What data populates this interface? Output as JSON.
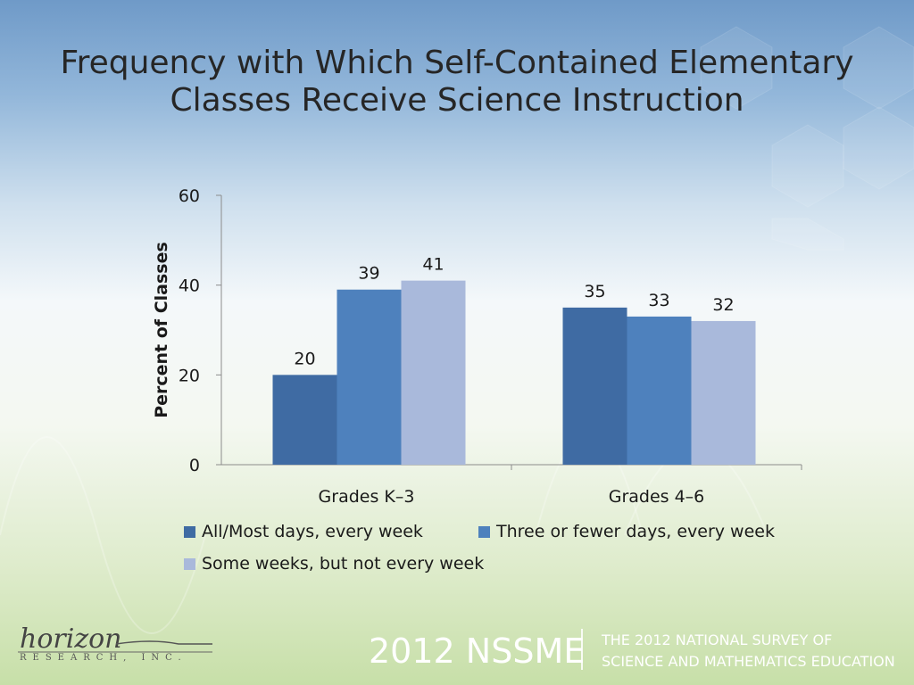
{
  "title_line1": "Frequency with Which Self-Contained Elementary",
  "title_line2": "Classes Receive Science Instruction",
  "chart_data": {
    "type": "bar",
    "title": "Frequency with Which Self-Contained Elementary Classes Receive Science Instruction",
    "xlabel": "",
    "ylabel": "Percent of Classes",
    "ylim": [
      0,
      60
    ],
    "yticks": [
      0,
      20,
      40,
      60
    ],
    "categories": [
      "Grades K–3",
      "Grades 4–6"
    ],
    "series": [
      {
        "name": "All/Most days, every week",
        "color": "#3f6ba3",
        "values": [
          20,
          35
        ]
      },
      {
        "name": "Three or fewer days, every week",
        "color": "#4e81bd",
        "values": [
          39,
          33
        ]
      },
      {
        "name": "Some weeks, but not every week",
        "color": "#a9b9db",
        "values": [
          41,
          32
        ]
      }
    ],
    "legend_position": "bottom",
    "grid": false
  },
  "logo": {
    "word": "horizon",
    "subtitle": "RESEARCH, INC."
  },
  "footer": {
    "main": "2012 NSSME",
    "line1": "THE 2012 NATIONAL SURVEY OF",
    "line2": "SCIENCE AND MATHEMATICS EDUCATION"
  }
}
